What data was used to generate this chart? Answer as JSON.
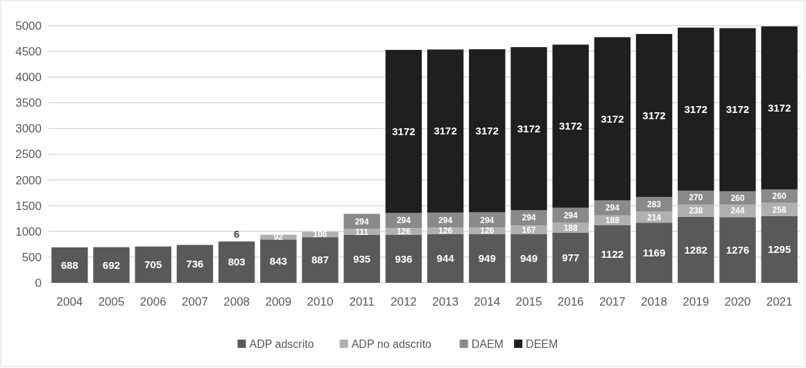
{
  "chart_data": {
    "type": "bar",
    "stacked": true,
    "categories": [
      "2004",
      "2005",
      "2006",
      "2007",
      "2008",
      "2009",
      "2010",
      "2011",
      "2012",
      "2013",
      "2014",
      "2015",
      "2016",
      "2017",
      "2018",
      "2019",
      "2020",
      "2021"
    ],
    "series": [
      {
        "name": "ADP adscrito",
        "color": "#595959",
        "values": [
          688,
          692,
          705,
          736,
          803,
          843,
          887,
          935,
          936,
          944,
          949,
          949,
          977,
          1122,
          1169,
          1282,
          1276,
          1295
        ]
      },
      {
        "name": "ADP no adscrito",
        "color": "#b0b0b0",
        "values": [
          null,
          null,
          null,
          null,
          6,
          92,
          106,
          111,
          126,
          126,
          126,
          167,
          188,
          188,
          214,
          238,
          244,
          258
        ]
      },
      {
        "name": "DAEM",
        "color": "#8a8a8a",
        "values": [
          null,
          null,
          null,
          null,
          null,
          null,
          null,
          294,
          294,
          294,
          294,
          294,
          294,
          294,
          283,
          270,
          260,
          260
        ]
      },
      {
        "name": "DEEM",
        "color": "#1f1f1f",
        "values": [
          null,
          null,
          null,
          null,
          null,
          null,
          null,
          null,
          3172,
          3172,
          3172,
          3172,
          3172,
          3172,
          3172,
          3172,
          3172,
          3172
        ]
      }
    ],
    "ylim": [
      0,
      5000
    ],
    "yticks": [
      0,
      500,
      1000,
      1500,
      2000,
      2500,
      3000,
      3500,
      4000,
      4500,
      5000
    ],
    "grid": "y",
    "data_labels": true,
    "legend": "bottom"
  }
}
